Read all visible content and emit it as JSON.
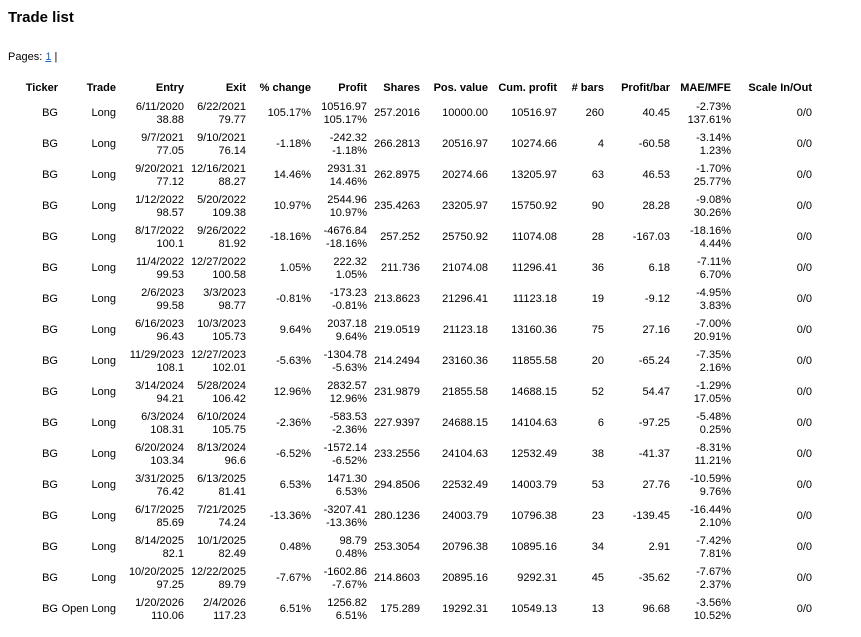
{
  "title": "Trade list",
  "pagination": {
    "label": "Pages:",
    "current_page": "1",
    "separator": "|"
  },
  "colors": {
    "link": "#1569c7",
    "text": "#000000",
    "background": "#ffffff"
  },
  "table": {
    "columns": [
      "Ticker",
      "Trade",
      "Entry",
      "Exit",
      "% change",
      "Profit",
      "Shares",
      "Pos. value",
      "Cum. profit",
      "# bars",
      "Profit/bar",
      "MAE/MFE",
      "Scale In/Out"
    ],
    "rows": [
      {
        "ticker": "BG",
        "trade": "Long",
        "entry_date": "6/11/2020",
        "entry_price": "38.88",
        "exit_date": "6/22/2021",
        "exit_price": "79.77",
        "pct_change": "105.17%",
        "profit": "10516.97",
        "profit_pct": "105.17%",
        "shares": "257.2016",
        "pos_value": "10000.00",
        "cum_profit": "10516.97",
        "bars": "260",
        "profit_per_bar": "40.45",
        "mae": "-2.73%",
        "mfe": "137.61%",
        "scale_in_out": "0/0"
      },
      {
        "ticker": "BG",
        "trade": "Long",
        "entry_date": "9/7/2021",
        "entry_price": "77.05",
        "exit_date": "9/10/2021",
        "exit_price": "76.14",
        "pct_change": "-1.18%",
        "profit": "-242.32",
        "profit_pct": "-1.18%",
        "shares": "266.2813",
        "pos_value": "20516.97",
        "cum_profit": "10274.66",
        "bars": "4",
        "profit_per_bar": "-60.58",
        "mae": "-3.14%",
        "mfe": "1.23%",
        "scale_in_out": "0/0"
      },
      {
        "ticker": "BG",
        "trade": "Long",
        "entry_date": "9/20/2021",
        "entry_price": "77.12",
        "exit_date": "12/16/2021",
        "exit_price": "88.27",
        "pct_change": "14.46%",
        "profit": "2931.31",
        "profit_pct": "14.46%",
        "shares": "262.8975",
        "pos_value": "20274.66",
        "cum_profit": "13205.97",
        "bars": "63",
        "profit_per_bar": "46.53",
        "mae": "-1.70%",
        "mfe": "25.77%",
        "scale_in_out": "0/0"
      },
      {
        "ticker": "BG",
        "trade": "Long",
        "entry_date": "1/12/2022",
        "entry_price": "98.57",
        "exit_date": "5/20/2022",
        "exit_price": "109.38",
        "pct_change": "10.97%",
        "profit": "2544.96",
        "profit_pct": "10.97%",
        "shares": "235.4263",
        "pos_value": "23205.97",
        "cum_profit": "15750.92",
        "bars": "90",
        "profit_per_bar": "28.28",
        "mae": "-9.08%",
        "mfe": "30.26%",
        "scale_in_out": "0/0"
      },
      {
        "ticker": "BG",
        "trade": "Long",
        "entry_date": "8/17/2022",
        "entry_price": "100.1",
        "exit_date": "9/26/2022",
        "exit_price": "81.92",
        "pct_change": "-18.16%",
        "profit": "-4676.84",
        "profit_pct": "-18.16%",
        "shares": "257.252",
        "pos_value": "25750.92",
        "cum_profit": "11074.08",
        "bars": "28",
        "profit_per_bar": "-167.03",
        "mae": "-18.16%",
        "mfe": "4.44%",
        "scale_in_out": "0/0"
      },
      {
        "ticker": "BG",
        "trade": "Long",
        "entry_date": "11/4/2022",
        "entry_price": "99.53",
        "exit_date": "12/27/2022",
        "exit_price": "100.58",
        "pct_change": "1.05%",
        "profit": "222.32",
        "profit_pct": "1.05%",
        "shares": "211.736",
        "pos_value": "21074.08",
        "cum_profit": "11296.41",
        "bars": "36",
        "profit_per_bar": "6.18",
        "mae": "-7.11%",
        "mfe": "6.70%",
        "scale_in_out": "0/0"
      },
      {
        "ticker": "BG",
        "trade": "Long",
        "entry_date": "2/6/2023",
        "entry_price": "99.58",
        "exit_date": "3/3/2023",
        "exit_price": "98.77",
        "pct_change": "-0.81%",
        "profit": "-173.23",
        "profit_pct": "-0.81%",
        "shares": "213.8623",
        "pos_value": "21296.41",
        "cum_profit": "11123.18",
        "bars": "19",
        "profit_per_bar": "-9.12",
        "mae": "-4.95%",
        "mfe": "3.83%",
        "scale_in_out": "0/0"
      },
      {
        "ticker": "BG",
        "trade": "Long",
        "entry_date": "6/16/2023",
        "entry_price": "96.43",
        "exit_date": "10/3/2023",
        "exit_price": "105.73",
        "pct_change": "9.64%",
        "profit": "2037.18",
        "profit_pct": "9.64%",
        "shares": "219.0519",
        "pos_value": "21123.18",
        "cum_profit": "13160.36",
        "bars": "75",
        "profit_per_bar": "27.16",
        "mae": "-7.00%",
        "mfe": "20.91%",
        "scale_in_out": "0/0"
      },
      {
        "ticker": "BG",
        "trade": "Long",
        "entry_date": "11/29/2023",
        "entry_price": "108.1",
        "exit_date": "12/27/2023",
        "exit_price": "102.01",
        "pct_change": "-5.63%",
        "profit": "-1304.78",
        "profit_pct": "-5.63%",
        "shares": "214.2494",
        "pos_value": "23160.36",
        "cum_profit": "11855.58",
        "bars": "20",
        "profit_per_bar": "-65.24",
        "mae": "-7.35%",
        "mfe": "2.16%",
        "scale_in_out": "0/0"
      },
      {
        "ticker": "BG",
        "trade": "Long",
        "entry_date": "3/14/2024",
        "entry_price": "94.21",
        "exit_date": "5/28/2024",
        "exit_price": "106.42",
        "pct_change": "12.96%",
        "profit": "2832.57",
        "profit_pct": "12.96%",
        "shares": "231.9879",
        "pos_value": "21855.58",
        "cum_profit": "14688.15",
        "bars": "52",
        "profit_per_bar": "54.47",
        "mae": "-1.29%",
        "mfe": "17.05%",
        "scale_in_out": "0/0"
      },
      {
        "ticker": "BG",
        "trade": "Long",
        "entry_date": "6/3/2024",
        "entry_price": "108.31",
        "exit_date": "6/10/2024",
        "exit_price": "105.75",
        "pct_change": "-2.36%",
        "profit": "-583.53",
        "profit_pct": "-2.36%",
        "shares": "227.9397",
        "pos_value": "24688.15",
        "cum_profit": "14104.63",
        "bars": "6",
        "profit_per_bar": "-97.25",
        "mae": "-5.48%",
        "mfe": "0.25%",
        "scale_in_out": "0/0"
      },
      {
        "ticker": "BG",
        "trade": "Long",
        "entry_date": "6/20/2024",
        "entry_price": "103.34",
        "exit_date": "8/13/2024",
        "exit_price": "96.6",
        "pct_change": "-6.52%",
        "profit": "-1572.14",
        "profit_pct": "-6.52%",
        "shares": "233.2556",
        "pos_value": "24104.63",
        "cum_profit": "12532.49",
        "bars": "38",
        "profit_per_bar": "-41.37",
        "mae": "-8.31%",
        "mfe": "11.21%",
        "scale_in_out": "0/0"
      },
      {
        "ticker": "BG",
        "trade": "Long",
        "entry_date": "3/31/2025",
        "entry_price": "76.42",
        "exit_date": "6/13/2025",
        "exit_price": "81.41",
        "pct_change": "6.53%",
        "profit": "1471.30",
        "profit_pct": "6.53%",
        "shares": "294.8506",
        "pos_value": "22532.49",
        "cum_profit": "14003.79",
        "bars": "53",
        "profit_per_bar": "27.76",
        "mae": "-10.59%",
        "mfe": "9.76%",
        "scale_in_out": "0/0"
      },
      {
        "ticker": "BG",
        "trade": "Long",
        "entry_date": "6/17/2025",
        "entry_price": "85.69",
        "exit_date": "7/21/2025",
        "exit_price": "74.24",
        "pct_change": "-13.36%",
        "profit": "-3207.41",
        "profit_pct": "-13.36%",
        "shares": "280.1236",
        "pos_value": "24003.79",
        "cum_profit": "10796.38",
        "bars": "23",
        "profit_per_bar": "-139.45",
        "mae": "-16.44%",
        "mfe": "2.10%",
        "scale_in_out": "0/0"
      },
      {
        "ticker": "BG",
        "trade": "Long",
        "entry_date": "8/14/2025",
        "entry_price": "82.1",
        "exit_date": "10/1/2025",
        "exit_price": "82.49",
        "pct_change": "0.48%",
        "profit": "98.79",
        "profit_pct": "0.48%",
        "shares": "253.3054",
        "pos_value": "20796.38",
        "cum_profit": "10895.16",
        "bars": "34",
        "profit_per_bar": "2.91",
        "mae": "-7.42%",
        "mfe": "7.81%",
        "scale_in_out": "0/0"
      },
      {
        "ticker": "BG",
        "trade": "Long",
        "entry_date": "10/20/2025",
        "entry_price": "97.25",
        "exit_date": "12/22/2025",
        "exit_price": "89.79",
        "pct_change": "-7.67%",
        "profit": "-1602.86",
        "profit_pct": "-7.67%",
        "shares": "214.8603",
        "pos_value": "20895.16",
        "cum_profit": "9292.31",
        "bars": "45",
        "profit_per_bar": "-35.62",
        "mae": "-7.67%",
        "mfe": "2.37%",
        "scale_in_out": "0/0"
      },
      {
        "ticker": "BG",
        "trade": "Open Long",
        "entry_date": "1/20/2026",
        "entry_price": "110.06",
        "exit_date": "2/4/2026",
        "exit_price": "117.23",
        "pct_change": "6.51%",
        "profit": "1256.82",
        "profit_pct": "6.51%",
        "shares": "175.289",
        "pos_value": "19292.31",
        "cum_profit": "10549.13",
        "bars": "13",
        "profit_per_bar": "96.68",
        "mae": "-3.56%",
        "mfe": "10.52%",
        "scale_in_out": "0/0"
      }
    ]
  }
}
